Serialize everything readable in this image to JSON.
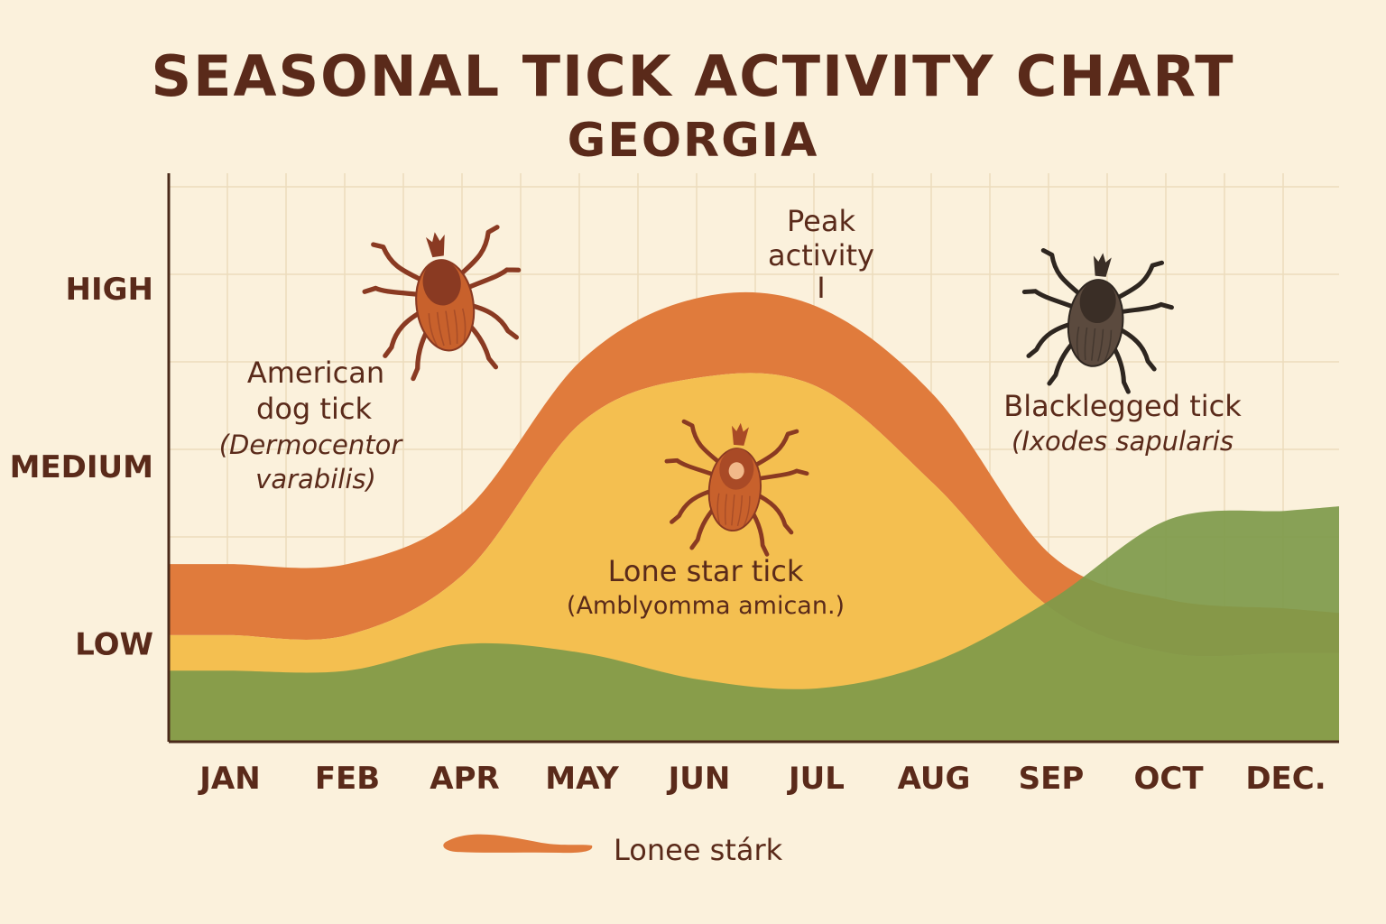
{
  "header": {
    "title": "SEASONAL TICK ACTIVITY CHART",
    "subtitle": "GEORGIA"
  },
  "colors": {
    "background": "#fbf1dc",
    "grid": "#ecdcbc",
    "axis": "#4a2a1a",
    "text": "#5a2a1a",
    "dog_tick": "#e07b3c",
    "lone_star": "#f4bf50",
    "blacklegged": "#7e9a4a",
    "tick_orange_body": "#c8612c",
    "tick_orange_shield": "#8a3a22",
    "tick_dark_body": "#5b4a3e",
    "tick_dark_shield": "#3a2e26"
  },
  "chart_data": {
    "type": "area",
    "title": "SEASONAL TICK ACTIVITY CHART",
    "subtitle": "GEORGIA",
    "categories": [
      "JAN",
      "FEB",
      "APR",
      "MAY",
      "JUN",
      "JUL",
      "AUG",
      "SEP",
      "OCT",
      "DEC."
    ],
    "y_tick_labels": [
      "LOW",
      "MEDIUM",
      "HIGH"
    ],
    "y_tick_values": [
      1,
      2,
      3
    ],
    "ylim": [
      0.45,
      3.65
    ],
    "grid": true,
    "series": [
      {
        "key": "blacklegged",
        "values": [
          0.85,
          0.85,
          1.0,
          0.95,
          0.8,
          0.75,
          0.9,
          1.25,
          1.7,
          1.75
        ],
        "color": "#7e9a4a"
      },
      {
        "key": "lone_star",
        "values": [
          1.05,
          1.05,
          1.4,
          2.25,
          2.5,
          2.45,
          1.9,
          1.2,
          0.95,
          0.95
        ],
        "color": "#f4bf50"
      },
      {
        "key": "dog_tick",
        "values": [
          1.45,
          1.45,
          1.75,
          2.6,
          2.95,
          2.9,
          2.4,
          1.5,
          1.25,
          1.2
        ],
        "lower_values": [
          1.05,
          1.05,
          1.4,
          2.25,
          2.5,
          2.45,
          1.9,
          1.2,
          0.95,
          0.95
        ],
        "color": "#e07b3c"
      }
    ],
    "annotations": {
      "peak": [
        "Peak",
        "activity",
        "I"
      ],
      "dog": [
        "American",
        "dog tick",
        "(Dermocentor",
        "varabilis)"
      ],
      "lone": [
        "Lone star tick",
        "(Amblyomma amican.)"
      ],
      "black": [
        "Blacklegged tick",
        "(Ixodes sapularis"
      ]
    },
    "legend": {
      "label": "Lonee stárk",
      "color": "#e07b3c",
      "placement": "bottom-center"
    }
  },
  "icons": {
    "dog": "orange-tick-icon",
    "lone": "orange-tick-icon",
    "black": "dark-tick-icon"
  }
}
